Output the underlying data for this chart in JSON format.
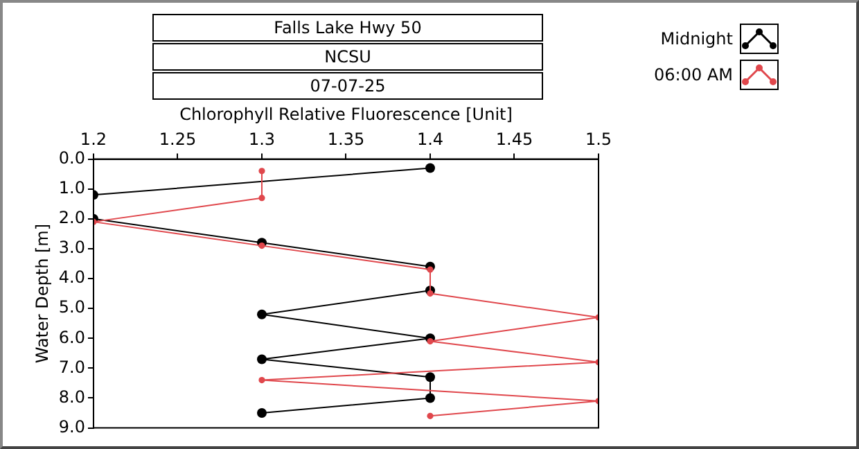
{
  "chart_data": {
    "type": "line",
    "title": "Falls Lake Hwy 50",
    "subtitle": "NCSU",
    "annotations": [
      "07-07-25"
    ],
    "xlabel": "Chlorophyll Relative Fluorescence [Unit]",
    "ylabel": "Water Depth [m]",
    "xlim": [
      1.2,
      1.5
    ],
    "xticks": [
      1.2,
      1.25,
      1.3,
      1.35,
      1.4,
      1.45,
      1.5
    ],
    "ylim": [
      9,
      0
    ],
    "yticks": [
      {
        "value": 0,
        "label": "0.0"
      },
      {
        "value": 1,
        "label": "1.0"
      },
      {
        "value": 2,
        "label": "2.0"
      },
      {
        "value": 3,
        "label": "3.0"
      },
      {
        "value": 4,
        "label": "4.0"
      },
      {
        "value": 5,
        "label": "5.0"
      },
      {
        "value": 6,
        "label": "6.0"
      },
      {
        "value": 7,
        "label": "7.0"
      },
      {
        "value": 8,
        "label": "8.0"
      },
      {
        "value": 9,
        "label": "9.0"
      }
    ],
    "grid": false,
    "legend": "top right",
    "marker": "circle",
    "line_style": "solid",
    "series": [
      {
        "name": "Midnight",
        "color": "#000000",
        "x": [
          1.4,
          1.2,
          1.2,
          1.3,
          1.4,
          1.4,
          1.3,
          1.4,
          1.3,
          1.4,
          1.4,
          1.3
        ],
        "values": [
          0.3,
          1.2,
          2.0,
          2.8,
          3.6,
          4.4,
          5.2,
          6.0,
          6.7,
          7.3,
          8.0,
          8.5
        ]
      },
      {
        "name": "06:00 AM",
        "color": "#e0474c",
        "x": [
          1.3,
          1.3,
          1.2,
          1.3,
          1.4,
          1.4,
          1.5,
          1.4,
          1.5,
          1.3,
          1.5,
          1.4
        ],
        "values": [
          0.4,
          1.3,
          2.1,
          2.9,
          3.7,
          4.5,
          5.3,
          6.1,
          6.8,
          7.4,
          8.1,
          8.6
        ]
      }
    ]
  }
}
